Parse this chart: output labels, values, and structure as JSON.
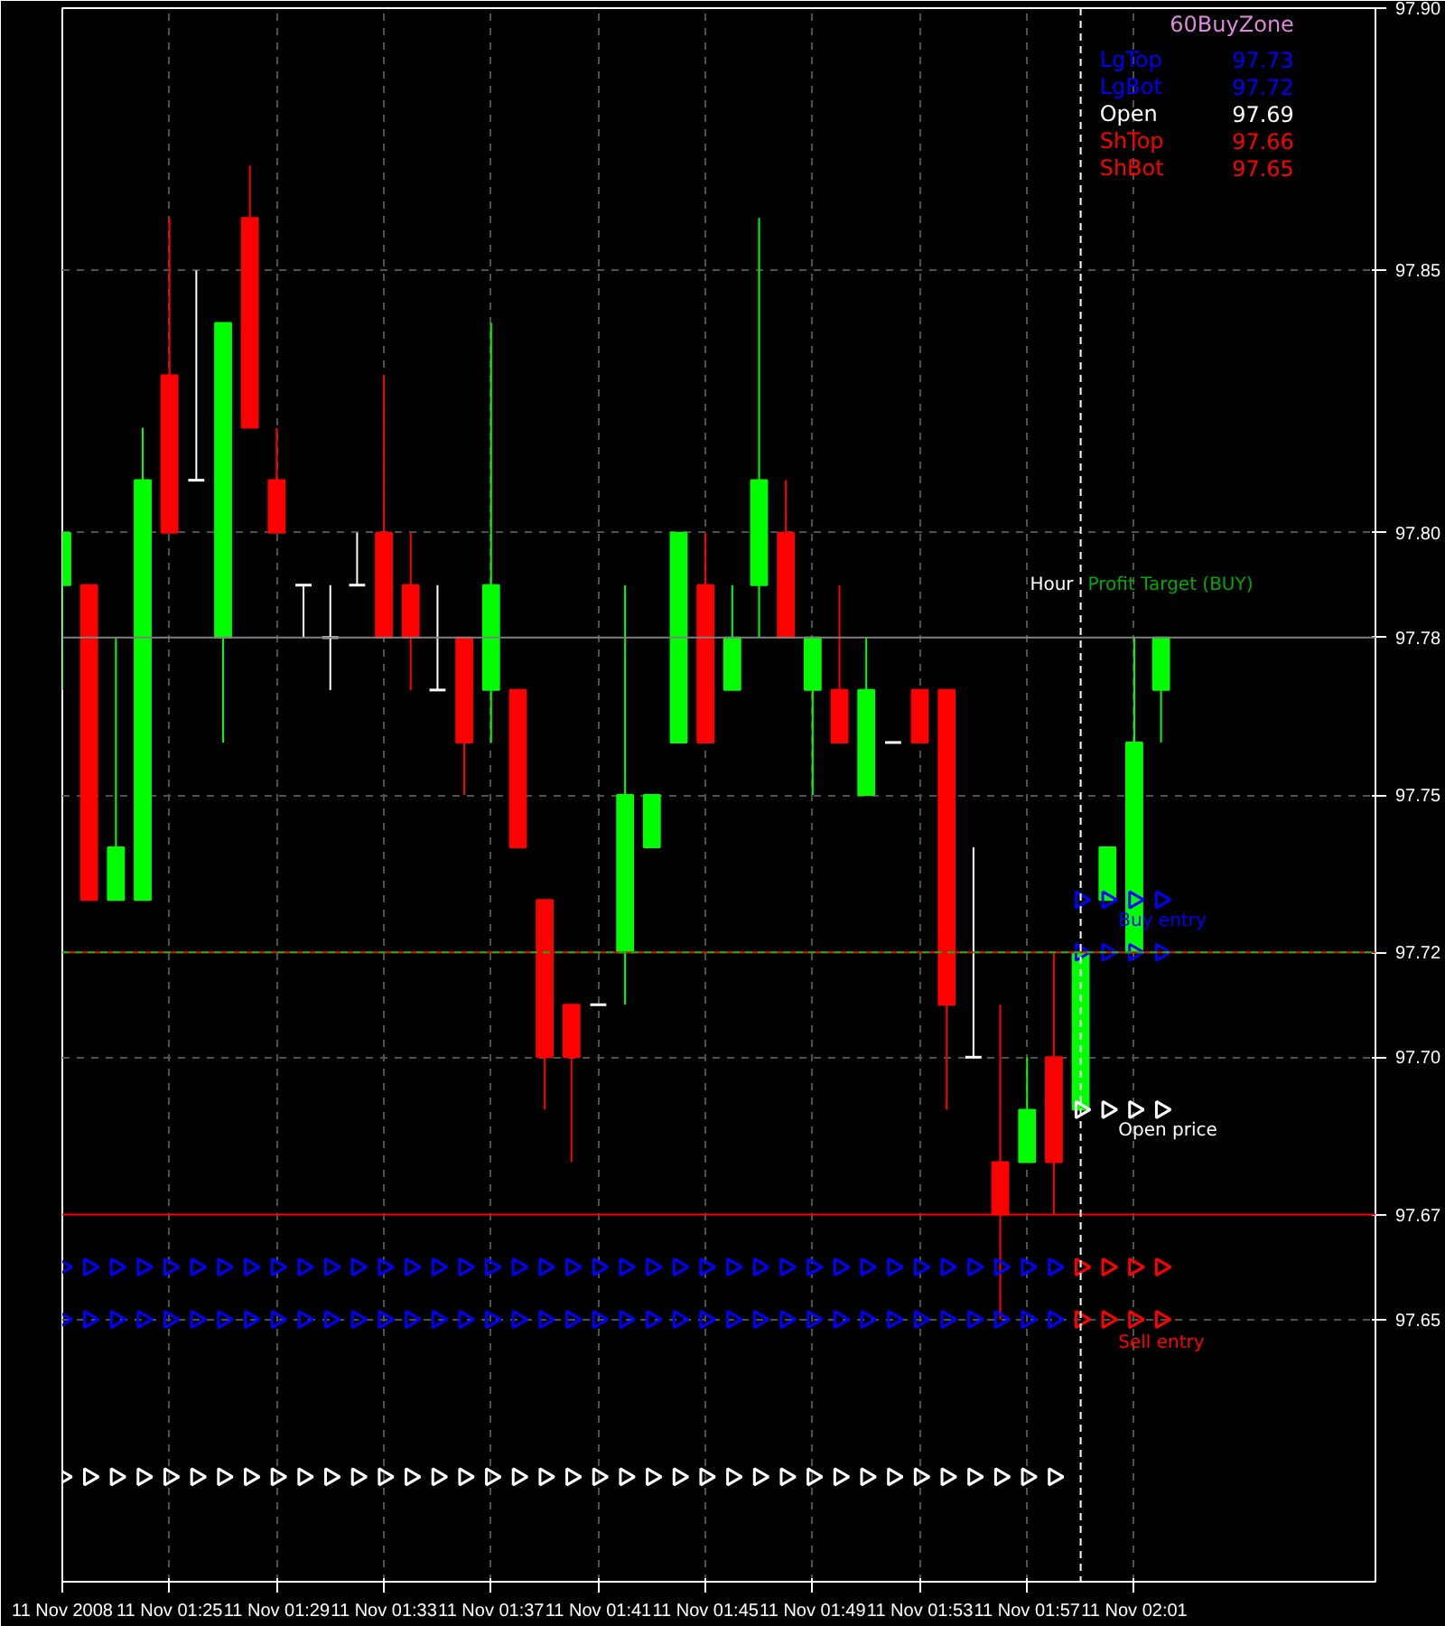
{
  "chart_data": {
    "type": "candlestick",
    "x": [
      "2008-11-11T01:21",
      "2008-11-11T01:22",
      "2008-11-11T01:23",
      "2008-11-11T01:24",
      "2008-11-11T01:25",
      "2008-11-11T01:26",
      "2008-11-11T01:27",
      "2008-11-11T01:28",
      "2008-11-11T01:29",
      "2008-11-11T01:30",
      "2008-11-11T01:31",
      "2008-11-11T01:32",
      "2008-11-11T01:33",
      "2008-11-11T01:34",
      "2008-11-11T01:35",
      "2008-11-11T01:36",
      "2008-11-11T01:37",
      "2008-11-11T01:38",
      "2008-11-11T01:39",
      "2008-11-11T01:40",
      "2008-11-11T01:41",
      "2008-11-11T01:42",
      "2008-11-11T01:43",
      "2008-11-11T01:44",
      "2008-11-11T01:45",
      "2008-11-11T01:46",
      "2008-11-11T01:47",
      "2008-11-11T01:48",
      "2008-11-11T01:49",
      "2008-11-11T01:50",
      "2008-11-11T01:51",
      "2008-11-11T01:52",
      "2008-11-11T01:53",
      "2008-11-11T01:54",
      "2008-11-11T01:55",
      "2008-11-11T01:56",
      "2008-11-11T01:57",
      "2008-11-11T01:58",
      "2008-11-11T01:59",
      "2008-11-11T02:00",
      "2008-11-11T02:01",
      "2008-11-11T02:02"
    ],
    "ohlc": [
      [
        97.79,
        97.8,
        97.77,
        97.8
      ],
      [
        97.79,
        97.79,
        97.73,
        97.73
      ],
      [
        97.73,
        97.78,
        97.73,
        97.74
      ],
      [
        97.73,
        97.82,
        97.73,
        97.81
      ],
      [
        97.83,
        97.86,
        97.8,
        97.8
      ],
      [
        97.81,
        97.85,
        97.81,
        97.81
      ],
      [
        97.78,
        97.84,
        97.76,
        97.84
      ],
      [
        97.86,
        97.87,
        97.82,
        97.82
      ],
      [
        97.81,
        97.82,
        97.8,
        97.8
      ],
      [
        97.79,
        97.79,
        97.78,
        97.79
      ],
      [
        97.78,
        97.79,
        97.77,
        97.78
      ],
      [
        97.79,
        97.8,
        97.79,
        97.79
      ],
      [
        97.8,
        97.83,
        97.78,
        97.78
      ],
      [
        97.79,
        97.8,
        97.77,
        97.78
      ],
      [
        97.77,
        97.79,
        97.77,
        97.77
      ],
      [
        97.78,
        97.78,
        97.75,
        97.76
      ],
      [
        97.77,
        97.84,
        97.76,
        97.79
      ],
      [
        97.77,
        97.77,
        97.74,
        97.74
      ],
      [
        97.73,
        97.73,
        97.69,
        97.7
      ],
      [
        97.71,
        97.71,
        97.68,
        97.7
      ],
      [
        97.71,
        97.71,
        97.71,
        97.71
      ],
      [
        97.72,
        97.79,
        97.71,
        97.75
      ],
      [
        97.74,
        97.75,
        97.74,
        97.75
      ],
      [
        97.76,
        97.8,
        97.76,
        97.8
      ],
      [
        97.79,
        97.8,
        97.76,
        97.76
      ],
      [
        97.77,
        97.79,
        97.77,
        97.78
      ],
      [
        97.79,
        97.86,
        97.78,
        97.81
      ],
      [
        97.8,
        97.81,
        97.78,
        97.78
      ],
      [
        97.77,
        97.78,
        97.75,
        97.78
      ],
      [
        97.77,
        97.79,
        97.76,
        97.76
      ],
      [
        97.75,
        97.78,
        97.75,
        97.77
      ],
      [
        97.76,
        97.76,
        97.76,
        97.76
      ],
      [
        97.77,
        97.77,
        97.76,
        97.76
      ],
      [
        97.77,
        97.77,
        97.69,
        97.71
      ],
      [
        97.7,
        97.74,
        97.7,
        97.7
      ],
      [
        97.68,
        97.71,
        97.65,
        97.67
      ],
      [
        97.68,
        97.7,
        97.68,
        97.69
      ],
      [
        97.7,
        97.72,
        97.67,
        97.68
      ],
      [
        97.69,
        97.72,
        97.69,
        97.72
      ],
      [
        97.73,
        97.74,
        97.73,
        97.74
      ],
      [
        97.72,
        97.78,
        97.72,
        97.76
      ],
      [
        97.77,
        97.78,
        97.76,
        97.78
      ]
    ],
    "series": [
      {
        "type": "scatter",
        "marker": "triangle",
        "color": "#0000ff",
        "values": [
          97.66,
          97.66,
          97.66,
          97.66,
          97.66,
          97.66,
          97.66,
          97.66,
          97.66,
          97.66,
          97.66,
          97.66,
          97.66,
          97.66,
          97.66,
          97.66,
          97.66,
          97.66,
          97.66,
          97.66,
          97.66,
          97.66,
          97.66,
          97.66,
          97.66,
          97.66,
          97.66,
          97.66,
          97.66,
          97.66,
          97.66,
          97.66,
          97.66,
          97.66,
          97.66,
          97.66,
          97.66,
          97.66,
          null,
          null,
          null,
          null
        ]
      },
      {
        "type": "scatter",
        "marker": "triangle",
        "color": "#0000ff",
        "values": [
          97.65,
          97.65,
          97.65,
          97.65,
          97.65,
          97.65,
          97.65,
          97.65,
          97.65,
          97.65,
          97.65,
          97.65,
          97.65,
          97.65,
          97.65,
          97.65,
          97.65,
          97.65,
          97.65,
          97.65,
          97.65,
          97.65,
          97.65,
          97.65,
          97.65,
          97.65,
          97.65,
          97.65,
          97.65,
          97.65,
          97.65,
          97.65,
          97.65,
          97.65,
          97.65,
          97.65,
          97.65,
          97.65,
          null,
          null,
          null,
          null
        ]
      },
      {
        "type": "scatter",
        "marker": "triangle",
        "color": "#ffffff",
        "values": [
          97.62,
          97.62,
          97.62,
          97.62,
          97.62,
          97.62,
          97.62,
          97.62,
          97.62,
          97.62,
          97.62,
          97.62,
          97.62,
          97.62,
          97.62,
          97.62,
          97.62,
          97.62,
          97.62,
          97.62,
          97.62,
          97.62,
          97.62,
          97.62,
          97.62,
          97.62,
          97.62,
          97.62,
          97.62,
          97.62,
          97.62,
          97.62,
          97.62,
          97.62,
          97.62,
          97.62,
          97.62,
          97.62,
          null,
          null,
          null,
          null
        ]
      },
      {
        "type": "scatter",
        "marker": "triangle",
        "color": "#ff0000",
        "values": [
          null,
          null,
          null,
          null,
          null,
          null,
          null,
          null,
          null,
          null,
          null,
          null,
          null,
          null,
          null,
          null,
          null,
          null,
          null,
          null,
          null,
          null,
          null,
          null,
          null,
          null,
          null,
          null,
          null,
          null,
          null,
          null,
          null,
          null,
          null,
          null,
          null,
          null,
          97.66,
          97.66,
          97.66,
          97.66
        ]
      },
      {
        "type": "scatter",
        "marker": "triangle",
        "color": "#ff0000",
        "values": [
          null,
          null,
          null,
          null,
          null,
          null,
          null,
          null,
          null,
          null,
          null,
          null,
          null,
          null,
          null,
          null,
          null,
          null,
          null,
          null,
          null,
          null,
          null,
          null,
          null,
          null,
          null,
          null,
          null,
          null,
          null,
          null,
          null,
          null,
          null,
          null,
          null,
          null,
          97.65,
          97.65,
          97.65,
          97.65
        ]
      },
      {
        "type": "scatter",
        "marker": "triangle",
        "color": "#ffffff",
        "values": [
          null,
          null,
          null,
          null,
          null,
          null,
          null,
          null,
          null,
          null,
          null,
          null,
          null,
          null,
          null,
          null,
          null,
          null,
          null,
          null,
          null,
          null,
          null,
          null,
          null,
          null,
          null,
          null,
          null,
          null,
          null,
          null,
          null,
          null,
          null,
          null,
          null,
          null,
          97.69,
          97.69,
          97.69,
          97.69
        ]
      },
      {
        "type": "scatter",
        "marker": "triangle",
        "color": "#0000ff",
        "values": [
          null,
          null,
          null,
          null,
          null,
          null,
          null,
          null,
          null,
          null,
          null,
          null,
          null,
          null,
          null,
          null,
          null,
          null,
          null,
          null,
          null,
          null,
          null,
          null,
          null,
          null,
          null,
          null,
          null,
          null,
          null,
          null,
          null,
          null,
          null,
          null,
          null,
          null,
          97.72,
          97.72,
          97.72,
          97.72
        ]
      },
      {
        "type": "scatter",
        "marker": "triangle",
        "color": "#0000ff",
        "values": [
          null,
          null,
          null,
          null,
          null,
          null,
          null,
          null,
          null,
          null,
          null,
          null,
          null,
          null,
          null,
          null,
          null,
          null,
          null,
          null,
          null,
          null,
          null,
          null,
          null,
          null,
          null,
          null,
          null,
          null,
          null,
          null,
          null,
          null,
          null,
          null,
          null,
          null,
          97.73,
          97.73,
          97.73,
          97.73
        ]
      }
    ],
    "xlim": [
      "2008-11-11T01:21",
      "2008-11-11T02:10"
    ],
    "xticks": [
      {
        "value": "2008-11-11T01:21",
        "label": "11 Nov 2008"
      },
      {
        "value": "2008-11-11T01:25",
        "label": "11 Nov 01:25"
      },
      {
        "value": "2008-11-11T01:29",
        "label": "11 Nov 01:29"
      },
      {
        "value": "2008-11-11T01:33",
        "label": "11 Nov 01:33"
      },
      {
        "value": "2008-11-11T01:37",
        "label": "11 Nov 01:37"
      },
      {
        "value": "2008-11-11T01:41",
        "label": "11 Nov 01:41"
      },
      {
        "value": "2008-11-11T01:45",
        "label": "11 Nov 01:45"
      },
      {
        "value": "2008-11-11T01:49",
        "label": "11 Nov 01:49"
      },
      {
        "value": "2008-11-11T01:53",
        "label": "11 Nov 01:53"
      },
      {
        "value": "2008-11-11T01:57",
        "label": "11 Nov 01:57"
      },
      {
        "value": "2008-11-11T02:01",
        "label": "11 Nov 02:01"
      }
    ],
    "ylim": [
      97.6,
      97.9
    ],
    "yticks": [
      97.65,
      {
        "value": 97.7,
        "label": "97.70"
      },
      97.75,
      {
        "value": 97.8,
        "label": "97.80"
      },
      97.85,
      {
        "value": 97.9,
        "label": "97.90"
      }
    ],
    "grid": true,
    "ref_lines": [
      {
        "axis": "y",
        "value": 97.78,
        "label": "97.78",
        "color": "#808080"
      },
      {
        "axis": "y",
        "value": 97.72,
        "label": "97.72",
        "color": "#ff0000"
      },
      {
        "axis": "y",
        "value": 97.67,
        "label": "97.67",
        "color": "#ff0000"
      },
      {
        "axis": "y",
        "value": 97.72,
        "label": null,
        "color": "#00c000",
        "line_style": "dashed"
      },
      {
        "axis": "x",
        "value": "2008-11-11T01:59",
        "label": null,
        "color": "#ffffff",
        "line_style": "dashed"
      }
    ],
    "annotations": [
      "60BuyZone",
      "LgTop",
      "97.73",
      "LgBot",
      "97.72",
      "Open",
      "97.69",
      "ShTop",
      "97.66",
      "ShBot",
      "97.65",
      {
        "text": "Buy entry",
        "x": "2008-11-11T02:00",
        "y": 97.73
      },
      {
        "text": "Open price",
        "x": "2008-11-11T02:00",
        "y": 97.69
      },
      {
        "text": "Sell entry",
        "x": "2008-11-11T02:00",
        "y": 97.65
      },
      {
        "text": "Profit Target (BUY)",
        "x": "2008-11-11T01:59",
        "y": 97.79
      },
      {
        "text": "Hour",
        "x": "2008-11-11T01:59",
        "y": 97.79
      }
    ]
  }
}
